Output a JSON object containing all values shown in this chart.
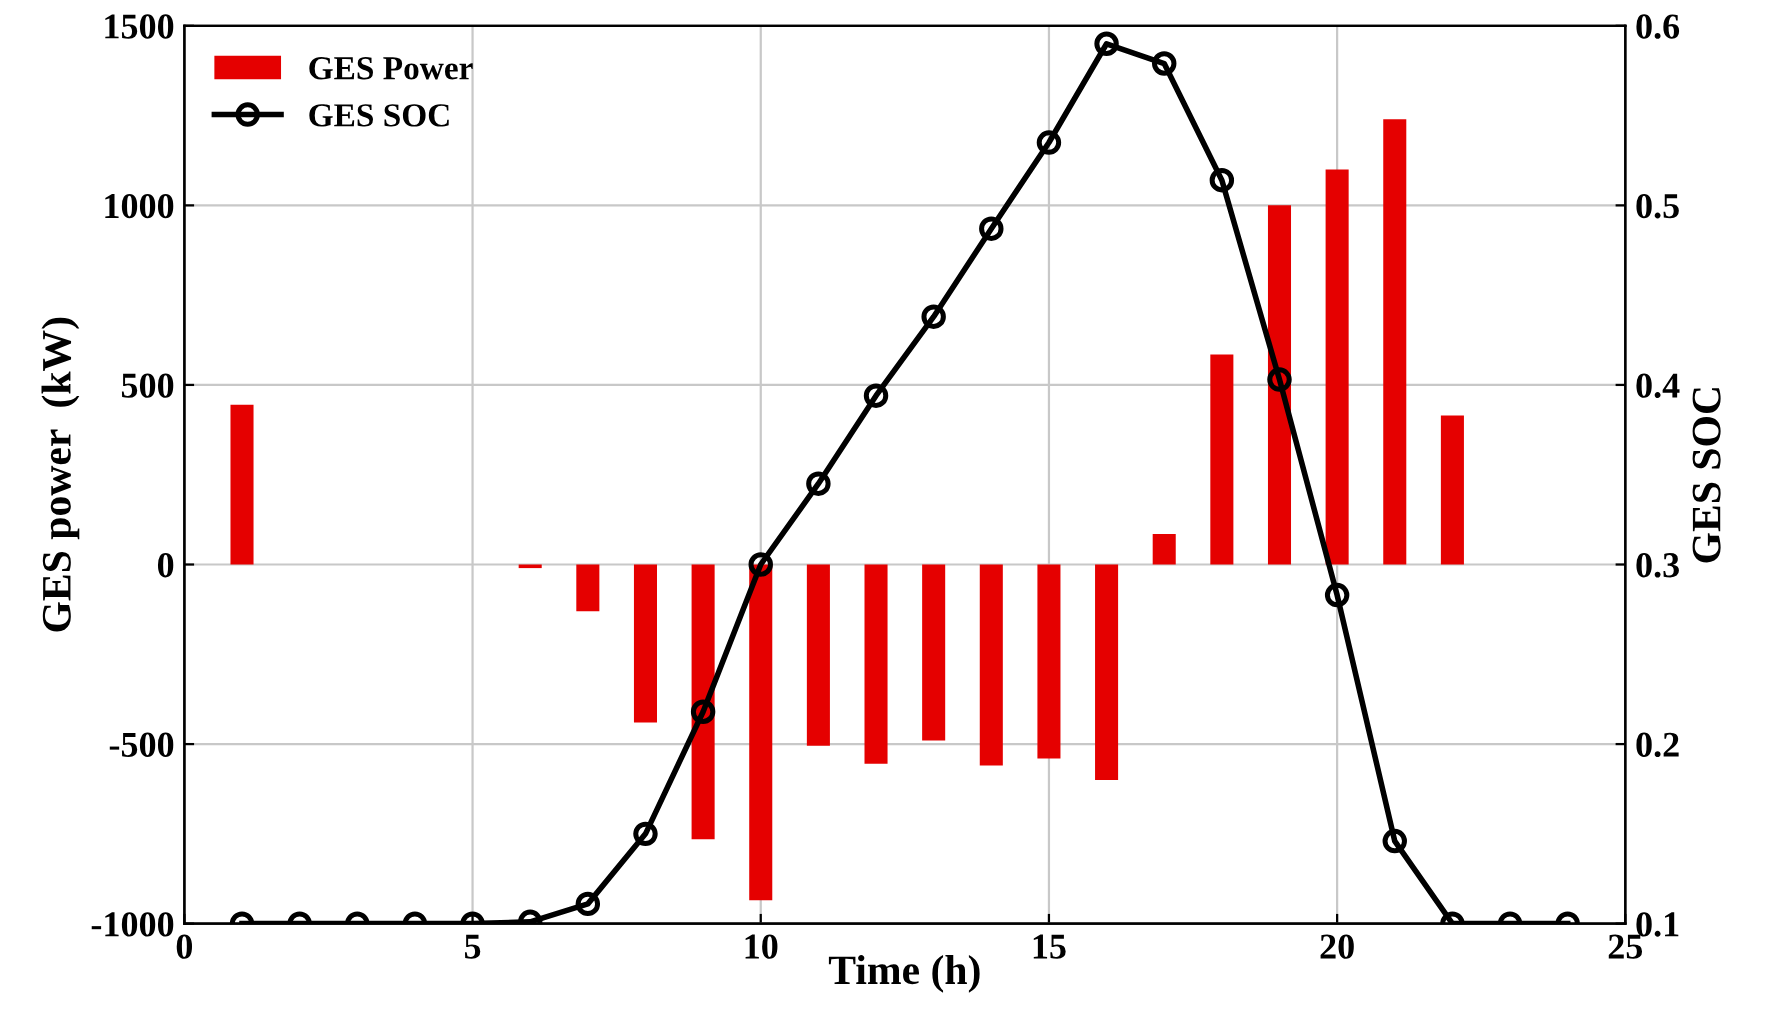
{
  "chart_data": {
    "type": "bar",
    "xlabel": "Time (h)",
    "ylabel": "GES power  (kW)",
    "y2label": "GES SOC",
    "x": [
      1,
      2,
      3,
      4,
      5,
      6,
      7,
      8,
      9,
      10,
      11,
      12,
      13,
      14,
      15,
      16,
      17,
      18,
      19,
      20,
      21,
      22,
      23,
      24
    ],
    "series": [
      {
        "name": "GES Power",
        "color": "#e50000",
        "values": [
          445,
          0,
          0,
          0,
          0,
          -10,
          -130,
          -440,
          -765,
          -935,
          -505,
          -555,
          -490,
          -560,
          -540,
          -600,
          85,
          585,
          1000,
          1100,
          1240,
          415,
          0,
          0
        ]
      },
      {
        "name": "GES SOC",
        "type": "line",
        "axis": "y2",
        "color": "#000000",
        "marker": "circle",
        "values": [
          0.1,
          0.1,
          0.1,
          0.1,
          0.1,
          0.101,
          0.111,
          0.15,
          0.218,
          0.3,
          0.345,
          0.394,
          0.438,
          0.487,
          0.535,
          0.59,
          0.579,
          0.514,
          0.403,
          0.283,
          0.146,
          0.1,
          0.1,
          0.1
        ]
      }
    ],
    "xlim": [
      0,
      25
    ],
    "xticks": [
      0,
      5,
      10,
      15,
      20,
      25
    ],
    "ylim": [
      -1000,
      1500
    ],
    "yticks": [
      -1000,
      -500,
      0,
      500,
      1000,
      1500
    ],
    "y2lim": [
      0.1,
      0.6
    ],
    "y2ticks": [
      0.1,
      0.2,
      0.3,
      0.4,
      0.5,
      0.6
    ],
    "grid": true,
    "legend": "top left"
  }
}
